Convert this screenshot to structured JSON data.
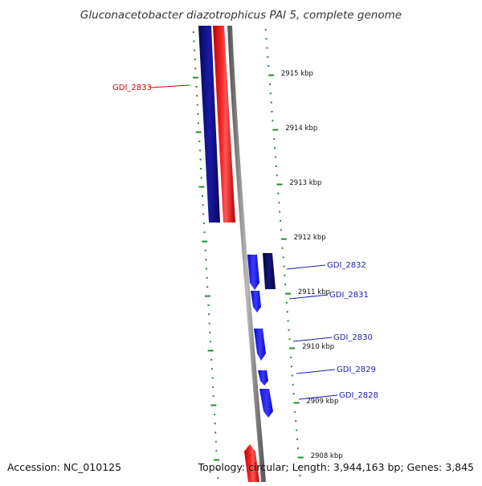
{
  "title": "Gluconacetobacter diazotrophicus PAI 5, complete genome",
  "footer": {
    "accession": "Accession: NC_010125",
    "summary": "Topology: circular; Length: 3,944,163 bp; Genes: 3,845"
  },
  "colors": {
    "forward_gene": "#ff0000",
    "forward_dark": "#1a0aa0",
    "reverse_gene": "#1f1fe6",
    "reverse_dark": "#0a0a6e",
    "backbone": "#888888",
    "ticks": "#2a8a2a",
    "red_label": "#cc0000",
    "blue_label": "#1a1ab4"
  },
  "scale_labels": [
    {
      "kbp": 2915,
      "text": "2915 kbp"
    },
    {
      "kbp": 2914,
      "text": "2914 kbp"
    },
    {
      "kbp": 2913,
      "text": "2913 kbp"
    },
    {
      "kbp": 2912,
      "text": "2912 kbp"
    },
    {
      "kbp": 2911,
      "text": "2911 kbp"
    },
    {
      "kbp": 2910,
      "text": "2910 kbp"
    },
    {
      "kbp": 2909,
      "text": "2909 kbp"
    },
    {
      "kbp": 2908,
      "text": "2908 kbp"
    }
  ],
  "genes": [
    {
      "name": "GDI_2833",
      "strand": "forward"
    },
    {
      "name": "GDI_2832",
      "strand": "reverse"
    },
    {
      "name": "GDI_2831",
      "strand": "reverse"
    },
    {
      "name": "GDI_2830",
      "strand": "reverse"
    },
    {
      "name": "GDI_2829",
      "strand": "reverse"
    },
    {
      "name": "GDI_2828",
      "strand": "reverse"
    }
  ]
}
